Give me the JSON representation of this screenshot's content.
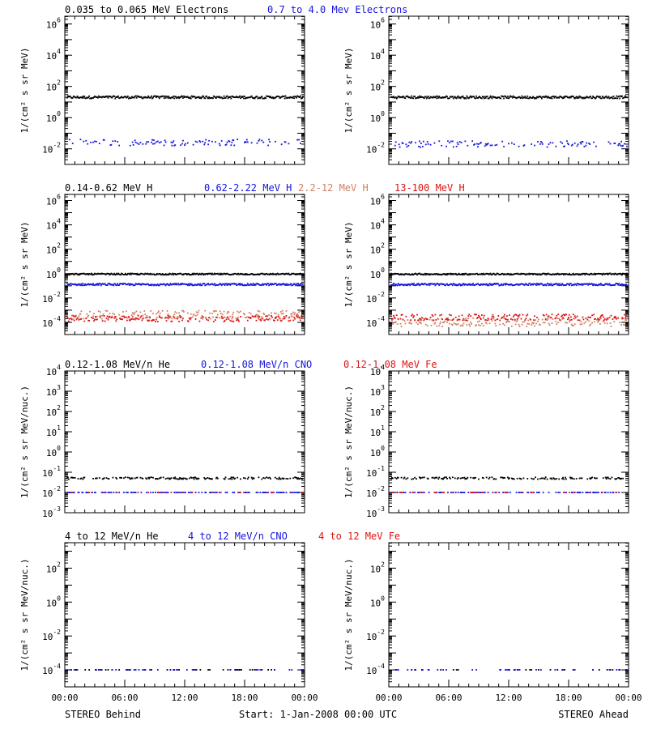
{
  "colors": {
    "black": "#000000",
    "blue": "#1414dc",
    "salmon": "#d08060",
    "red": "#dc1414"
  },
  "chart_data": [
    {
      "type": "scatter",
      "panel": "electrons",
      "ylabel": "1/(cm² s sr MeV)",
      "ylog_range": [
        -3,
        6.5
      ],
      "yticks": [
        {
          "label": "10",
          "sup": "6",
          "exp": 6
        },
        {
          "label": "10",
          "sup": "4",
          "exp": 4
        },
        {
          "label": "10",
          "sup": "2",
          "exp": 2
        },
        {
          "label": "10",
          "sup": "0",
          "exp": 0
        },
        {
          "label": "10",
          "sup": "-2",
          "exp": -2
        }
      ],
      "series": [
        {
          "name": "0.035 to 0.065 MeV Electrons",
          "color": "#000000",
          "behind_log": 1.3,
          "ahead_log": 1.3,
          "spread": 0.08,
          "density": 1.0
        },
        {
          "name": "0.7 to 4.0 Mev Electrons",
          "color": "#1414dc",
          "behind_log": -1.6,
          "ahead_log": -1.7,
          "spread": 0.2,
          "density": 0.35
        }
      ]
    },
    {
      "type": "scatter",
      "panel": "protons",
      "ylabel": "1/(cm² s sr MeV)",
      "ylog_range": [
        -5,
        6.5
      ],
      "yticks": [
        {
          "label": "10",
          "sup": "6",
          "exp": 6
        },
        {
          "label": "10",
          "sup": "4",
          "exp": 4
        },
        {
          "label": "10",
          "sup": "2",
          "exp": 2
        },
        {
          "label": "10",
          "sup": "0",
          "exp": 0
        },
        {
          "label": "10",
          "sup": "-2",
          "exp": -2
        },
        {
          "label": "10",
          "sup": "-4",
          "exp": -4
        }
      ],
      "series": [
        {
          "name": "0.14-0.62 MeV H",
          "color": "#000000",
          "behind_log": -0.05,
          "ahead_log": -0.05,
          "spread": 0.06,
          "density": 1.0
        },
        {
          "name": "0.62-2.22 MeV H",
          "color": "#1414dc",
          "behind_log": -0.9,
          "ahead_log": -0.9,
          "spread": 0.08,
          "density": 1.0
        },
        {
          "name": "2.2-12 MeV H",
          "color": "#d08060",
          "behind_log": -3.4,
          "ahead_log": -4.0,
          "spread": 0.35,
          "density": 0.6
        },
        {
          "name": "13-100 MeV H",
          "color": "#dc1414",
          "behind_log": -3.7,
          "ahead_log": -3.6,
          "spread": 0.25,
          "density": 0.6
        }
      ]
    },
    {
      "type": "scatter",
      "panel": "low-energy heavy ions",
      "ylabel": "1/(cm² s sr MeV/nuc.)",
      "ylog_range": [
        -3,
        4
      ],
      "yticks": [
        {
          "label": "10",
          "sup": "4",
          "exp": 4
        },
        {
          "label": "10",
          "sup": "3",
          "exp": 3
        },
        {
          "label": "10",
          "sup": "2",
          "exp": 2
        },
        {
          "label": "10",
          "sup": "1",
          "exp": 1
        },
        {
          "label": "10",
          "sup": "0",
          "exp": 0
        },
        {
          "label": "10",
          "sup": "-1",
          "exp": -1
        },
        {
          "label": "10",
          "sup": "-2",
          "exp": -2
        },
        {
          "label": "10",
          "sup": "-3",
          "exp": -3
        }
      ],
      "series": [
        {
          "name": "0.12-1.08 MeV/n He",
          "color": "#000000",
          "behind_log": -1.3,
          "ahead_log": -1.3,
          "spread": 0.05,
          "density": 0.5
        },
        {
          "name": "0.12-1.08 MeV/n CNO",
          "color": "#1414dc",
          "behind_log": -2.0,
          "ahead_log": -2.0,
          "spread": 0.0,
          "density": 0.35
        },
        {
          "name": "0.12-1.08 MeV Fe",
          "color": "#dc1414",
          "behind_log": -2.0,
          "ahead_log": -2.0,
          "spread": 0.0,
          "density": 0.12
        }
      ]
    },
    {
      "type": "scatter",
      "panel": "high-energy heavy ions",
      "ylabel": "1/(cm² s sr MeV/nuc.)",
      "ylog_range": [
        -5,
        3.5
      ],
      "yticks": [
        {
          "label": "10",
          "sup": "2",
          "exp": 2
        },
        {
          "label": "10",
          "sup": "0",
          "exp": 0
        },
        {
          "label": "10",
          "sup": "-2",
          "exp": -2
        },
        {
          "label": "10",
          "sup": "-4",
          "exp": -4
        }
      ],
      "series": [
        {
          "name": "4 to 12 MeV/n He",
          "color": "#000000",
          "behind_log": -4.0,
          "ahead_log": -4.0,
          "spread": 0.0,
          "density": 0.12
        },
        {
          "name": "4 to 12 MeV/n CNO",
          "color": "#1414dc",
          "behind_log": -4.0,
          "ahead_log": -4.0,
          "spread": 0.0,
          "density": 0.1
        },
        {
          "name": "4 to 12 MeV Fe",
          "color": "#dc1414",
          "behind_log": -4.0,
          "ahead_log": -4.0,
          "spread": 0.0,
          "density": 0.0
        }
      ]
    }
  ],
  "xticks": [
    "00:00",
    "06:00",
    "12:00",
    "18:00",
    "00:00"
  ],
  "footer": {
    "left": "STEREO Behind",
    "center": "Start:  1-Jan-2008 00:00 UTC",
    "right": "STEREO Ahead"
  }
}
